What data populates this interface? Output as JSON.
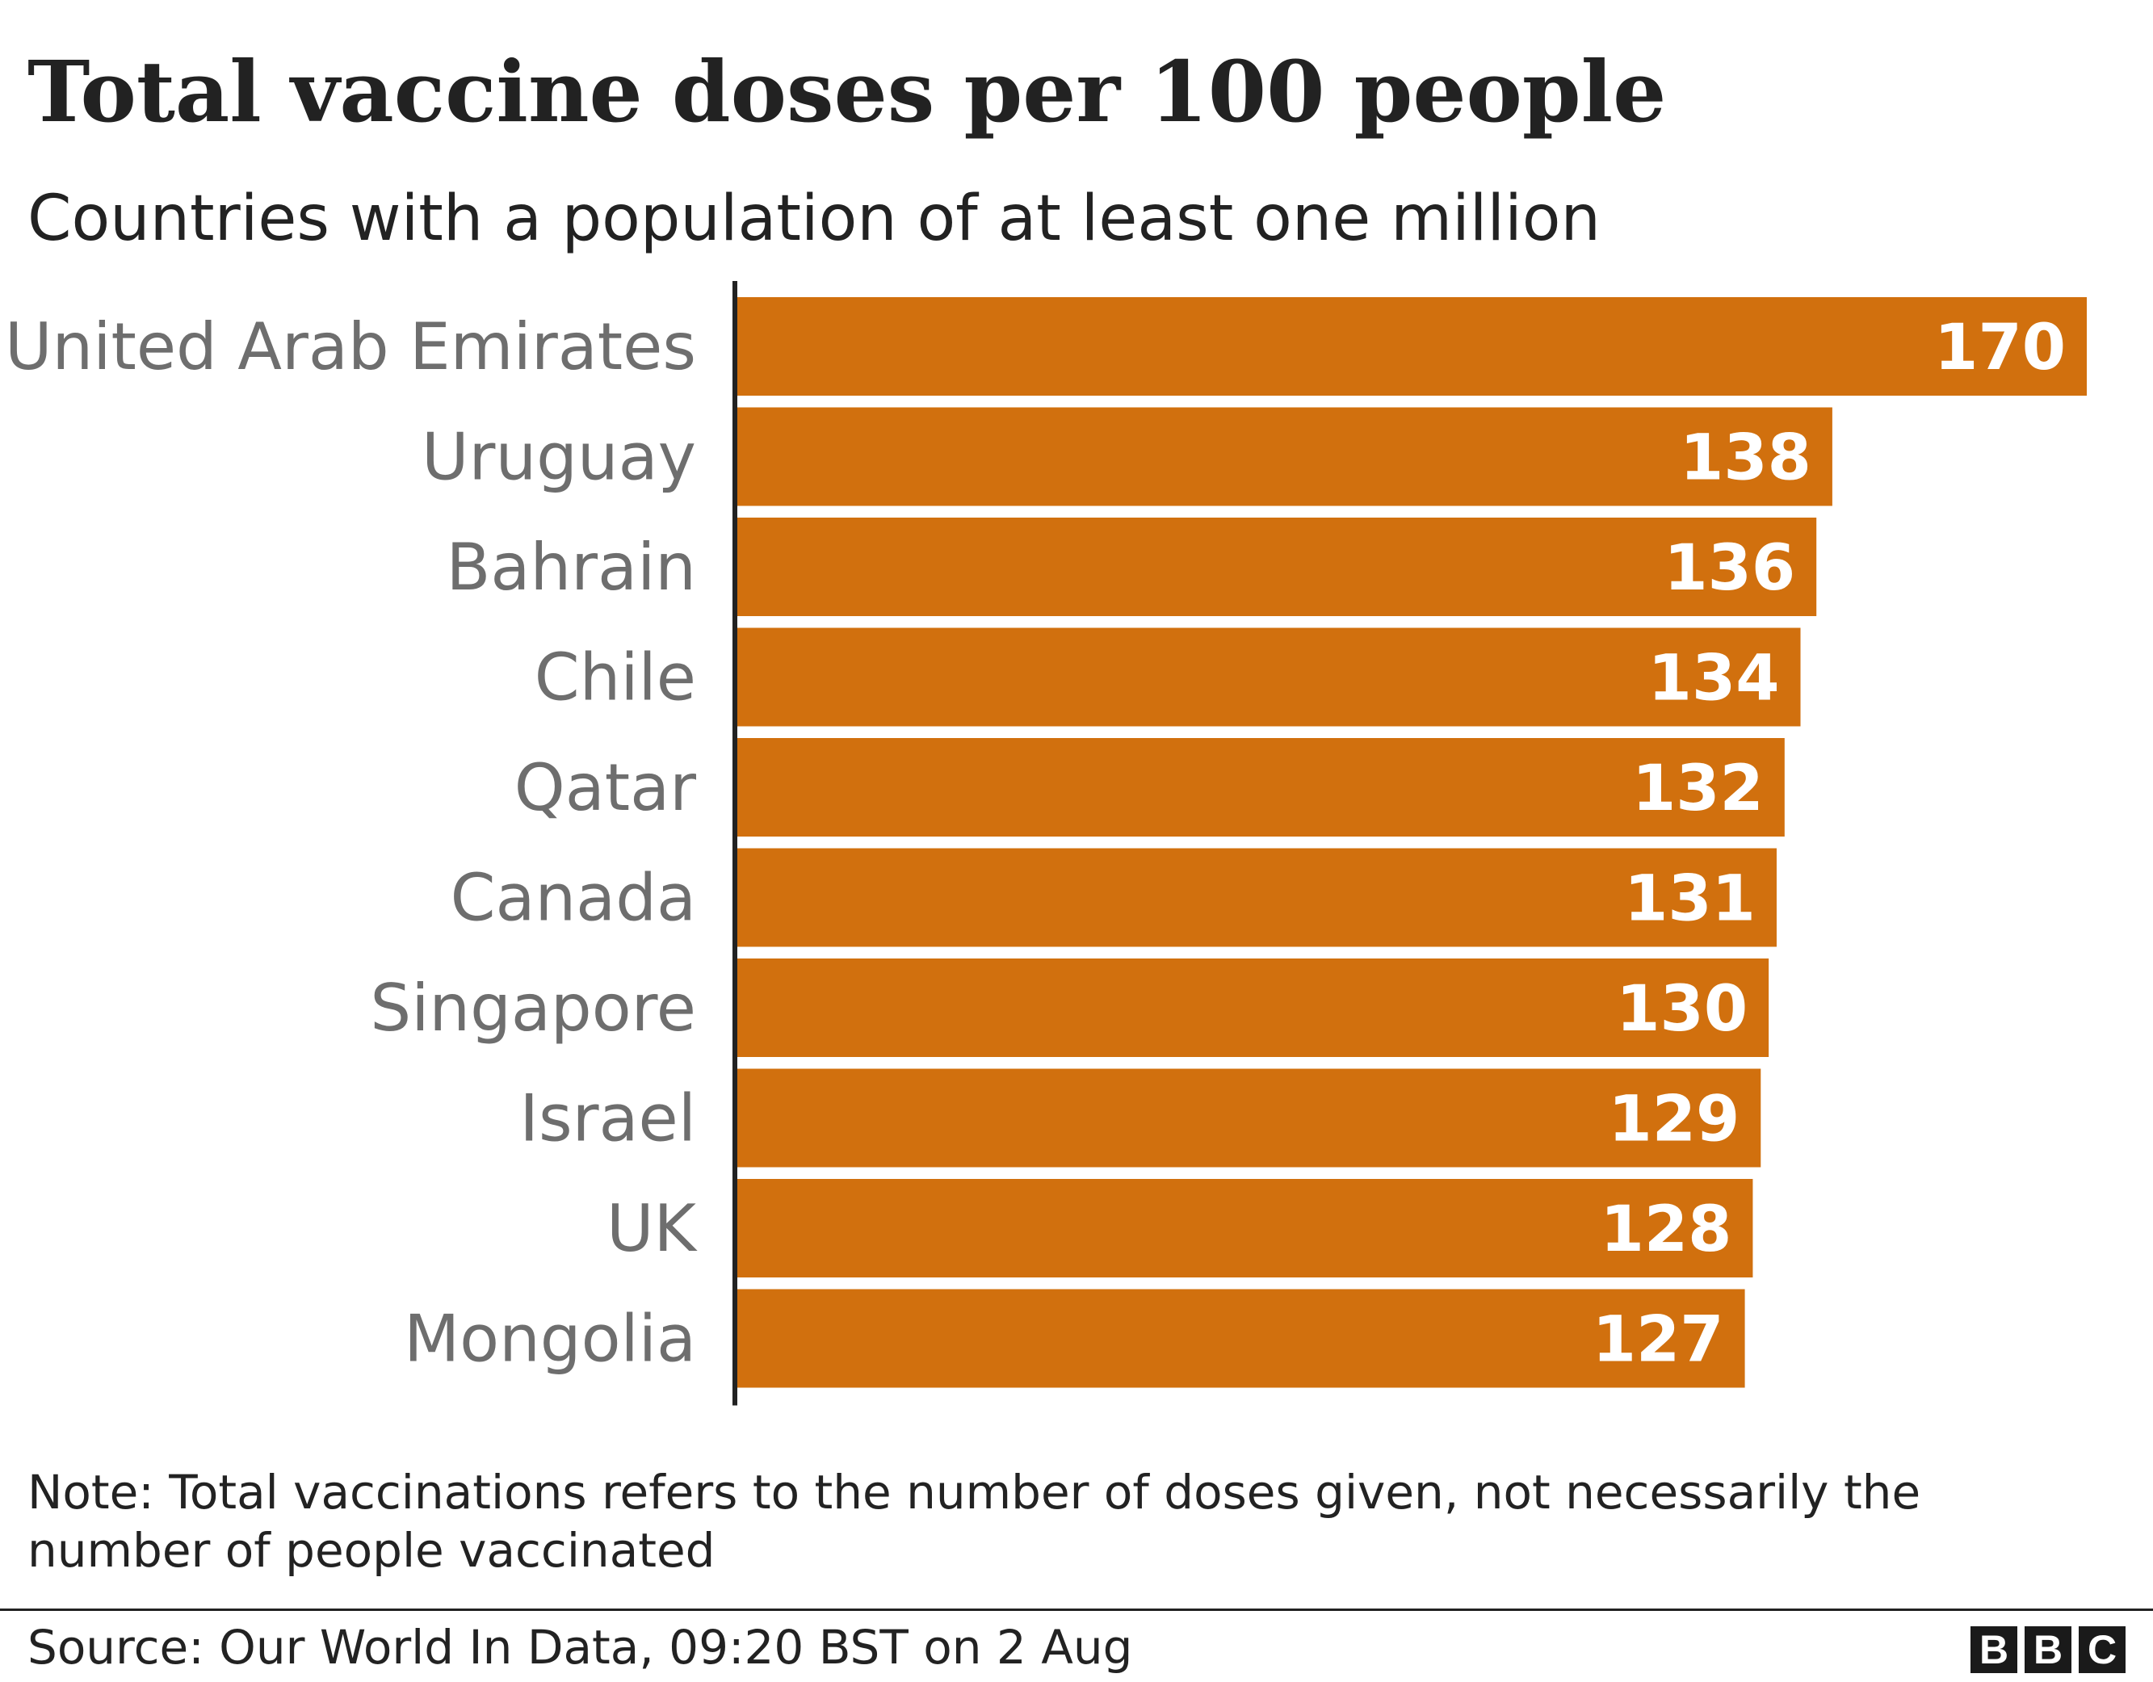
{
  "title": "Total vaccine doses per 100 people",
  "subtitle": "Countries with a population of at least one million",
  "note": "Note: Total vaccinations refers to the number of doses given, not necessarily the number of people vaccinated",
  "source": "Source: Our World In Data, 09:20 BST on 2 Aug",
  "logo": [
    "B",
    "B",
    "C"
  ],
  "colors": {
    "bar": "#d1700e",
    "axis": "#222222",
    "category_label": "#6e6e6e",
    "value_label": "#ffffff"
  },
  "chart_data": {
    "type": "bar",
    "orientation": "horizontal",
    "title": "Total vaccine doses per 100 people",
    "subtitle": "Countries with a population of at least one million",
    "categories": [
      "United Arab Emirates",
      "Uruguay",
      "Bahrain",
      "Chile",
      "Qatar",
      "Canada",
      "Singapore",
      "Israel",
      "UK",
      "Mongolia"
    ],
    "values": [
      170,
      138,
      136,
      134,
      132,
      131,
      130,
      129,
      128,
      127
    ],
    "xlim": [
      0,
      170
    ],
    "xlabel": "",
    "ylabel": "",
    "grid": false,
    "legend": "none",
    "data_labels": "inside-end"
  }
}
